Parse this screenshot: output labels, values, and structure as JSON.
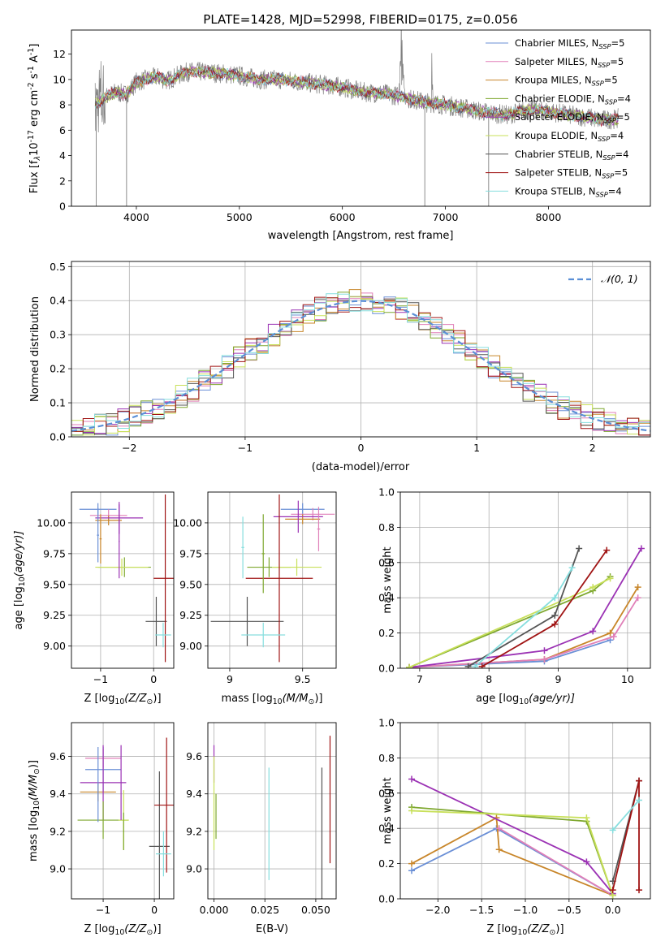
{
  "title": "PLATE=1428, MJD=52998, FIBERID=0175, z=0.056",
  "colors": {
    "Chabrier MILES": "#6a8fd6",
    "Salpeter MILES": "#e07fb8",
    "Kroupa MILES": "#c8862a",
    "Chabrier ELODIE": "#7fa830",
    "Salpeter ELODIE": "#9b32b4",
    "Kroupa ELODIE": "#c8e05a",
    "Chabrier STELIB": "#555555",
    "Salpeter STELIB": "#a01414",
    "Kroupa STELIB": "#86dede",
    "data": "#808080",
    "normal": "#5b8fd6",
    "MILES_pts": "#6a8fd6",
    "orange_pts": "#e07a28",
    "pink_pts": "#e07fb8"
  },
  "chart_data": [
    {
      "type": "line",
      "name": "spectrum",
      "xlabel": "wavelength [Angstrom, rest frame]",
      "ylabel": "Flux [f",
      "ylabel_rest": "10",
      "ylabel_exp1": "-17",
      "ylabel_mid": " erg cm",
      "ylabel_exp2": "-2",
      "ylabel_s": " s",
      "ylabel_exp3": "-1",
      "ylabel_end": " A",
      "ylabel_exp4": "-1",
      "ylabel_close": "]",
      "xlim": [
        3370,
        8990
      ],
      "ylim": [
        0,
        13.9
      ],
      "xticks": [
        4000,
        5000,
        6000,
        7000,
        8000
      ],
      "yticks": [
        0,
        2,
        4,
        6,
        8,
        10,
        12
      ],
      "legend": [
        {
          "name": "Chabrier MILES, N",
          "sub": "SSP",
          "suffix": "=5"
        },
        {
          "name": "Salpeter MILES, N",
          "sub": "SSP",
          "suffix": "=5"
        },
        {
          "name": "Kroupa MILES, N",
          "sub": "SSP",
          "suffix": "=5"
        },
        {
          "name": "Chabrier ELODIE, N",
          "sub": "SSP",
          "suffix": "=4"
        },
        {
          "name": "Salpeter ELODIE, N",
          "sub": "SSP",
          "suffix": "=5"
        },
        {
          "name": "Kroupa ELODIE, N",
          "sub": "SSP",
          "suffix": "=4"
        },
        {
          "name": "Chabrier STELIB, N",
          "sub": "SSP",
          "suffix": "=4"
        },
        {
          "name": "Salpeter STELIB, N",
          "sub": "SSP",
          "suffix": "=5"
        },
        {
          "name": "Kroupa STELIB, N",
          "sub": "SSP",
          "suffix": "=4"
        }
      ],
      "continuum": [
        [
          3600,
          8.0
        ],
        [
          3700,
          8.6
        ],
        [
          3800,
          9.0
        ],
        [
          3900,
          8.8
        ],
        [
          4000,
          9.8
        ],
        [
          4100,
          10.0
        ],
        [
          4200,
          10.2
        ],
        [
          4300,
          9.9
        ],
        [
          4400,
          10.3
        ],
        [
          4500,
          10.6
        ],
        [
          4600,
          10.6
        ],
        [
          4800,
          10.5
        ],
        [
          5000,
          10.3
        ],
        [
          5200,
          10.0
        ],
        [
          5400,
          10.0
        ],
        [
          5600,
          9.8
        ],
        [
          5800,
          9.6
        ],
        [
          6000,
          9.4
        ],
        [
          6200,
          9.0
        ],
        [
          6400,
          8.9
        ],
        [
          6600,
          8.6
        ],
        [
          6800,
          8.2
        ],
        [
          7000,
          8.0
        ],
        [
          7200,
          7.7
        ],
        [
          7400,
          7.4
        ],
        [
          7600,
          7.2
        ],
        [
          7800,
          7.6
        ],
        [
          8000,
          7.5
        ],
        [
          8200,
          7.2
        ],
        [
          8400,
          7.0
        ],
        [
          8500,
          6.8
        ],
        [
          8680,
          6.9
        ]
      ]
    },
    {
      "type": "line",
      "name": "residual_distribution",
      "xlabel": "(data-model)/error",
      "ylabel": "Normed distribution",
      "xlim": [
        -2.5,
        2.5
      ],
      "ylim": [
        0,
        0.515
      ],
      "xticks": [
        -2,
        -1,
        0,
        1,
        2
      ],
      "yticks": [
        0.0,
        0.1,
        0.2,
        0.3,
        0.4,
        0.5
      ],
      "legend": "N(0,1)",
      "bin_width": 0.1
    },
    {
      "type": "scatter",
      "name": "age_vs_Z",
      "xlabel": "Z [log",
      "xlabel_tail": "(Z/Z",
      "ylabel": "age  [log",
      "ylabel_tail": "(age/yr)]",
      "xlim": [
        -1.55,
        0.38
      ],
      "ylim": [
        8.82,
        10.25
      ],
      "xticks": [
        -1,
        0
      ],
      "yticks": [
        9.0,
        9.25,
        9.5,
        9.75,
        10.0
      ],
      "points": [
        {
          "model": "Chabrier MILES",
          "x": -1.05,
          "xerr": 0.35,
          "y": 10.11,
          "yerr": 0.05
        },
        {
          "model": "Salpeter MILES",
          "x": -0.85,
          "xerr": 0.35,
          "y": 10.06,
          "yerr": 0.05
        },
        {
          "model": "Kroupa MILES",
          "x": -0.85,
          "xerr": 0.25,
          "y": 10.02,
          "yerr": 0.04
        },
        {
          "model": "Salpeter ELODIE",
          "x": -0.65,
          "xerr": 0.45,
          "y": 10.04,
          "yerr": 0.13
        },
        {
          "model": "Chabrier ELODIE",
          "x": -0.55,
          "xerr": 0.5,
          "y": 9.64,
          "yerr": 0.08
        },
        {
          "model": "Kroupa ELODIE",
          "x": -0.6,
          "xerr": 0.5,
          "y": 9.64,
          "yerr": 0.07
        },
        {
          "model": "Chabrier STELIB",
          "x": 0.05,
          "xerr": 0.2,
          "y": 9.2,
          "yerr": 0.2
        },
        {
          "model": "Salpeter STELIB",
          "x": 0.22,
          "xerr": 0.22,
          "y": 9.55,
          "yerr": 0.68
        },
        {
          "model": "Kroupa STELIB",
          "x": 0.18,
          "xerr": 0.15,
          "y": 9.09,
          "yerr": 0.1
        },
        {
          "model": "Chabrier MILES",
          "x": -1.05,
          "xerr": 0.02,
          "y": 9.9,
          "yerr": 0.22
        },
        {
          "model": "Kroupa MILES",
          "x": -1.0,
          "xerr": 0.02,
          "y": 9.87,
          "yerr": 0.2
        },
        {
          "model": "Salpeter ELODIE",
          "x": -0.65,
          "xerr": 0.01,
          "y": 9.85,
          "yerr": 0.3
        }
      ]
    },
    {
      "type": "scatter",
      "name": "age_vs_mass",
      "xlabel": "mass [log",
      "xlabel_tail": "(M/M",
      "xlim": [
        8.85,
        9.73
      ],
      "ylim": [
        8.82,
        10.25
      ],
      "xticks": [
        9.0,
        9.5
      ],
      "yticks": [
        9.0,
        9.25,
        9.5,
        9.75,
        10.0
      ],
      "points": [
        {
          "model": "Chabrier MILES",
          "x": 9.5,
          "xerr": 0.15,
          "y": 10.11,
          "yerr": 0.05
        },
        {
          "model": "Salpeter MILES",
          "x": 9.57,
          "xerr": 0.15,
          "y": 10.07,
          "yerr": 0.05
        },
        {
          "model": "Kroupa MILES",
          "x": 9.5,
          "xerr": 0.12,
          "y": 10.03,
          "yerr": 0.04
        },
        {
          "model": "Salpeter ELODIE",
          "x": 9.47,
          "xerr": 0.17,
          "y": 10.05,
          "yerr": 0.13
        },
        {
          "model": "Chabrier ELODIE",
          "x": 9.27,
          "xerr": 0.15,
          "y": 9.64,
          "yerr": 0.08
        },
        {
          "model": "Kroupa ELODIE",
          "x": 9.46,
          "xerr": 0.17,
          "y": 9.64,
          "yerr": 0.07
        },
        {
          "model": "Chabrier STELIB",
          "x": 9.12,
          "xerr": 0.25,
          "y": 9.2,
          "yerr": 0.2
        },
        {
          "model": "Salpeter STELIB",
          "x": 9.34,
          "xerr": 0.23,
          "y": 9.55,
          "yerr": 0.68
        },
        {
          "model": "Kroupa STELIB",
          "x": 9.23,
          "xerr": 0.15,
          "y": 9.09,
          "yerr": 0.1
        },
        {
          "model": "Chabrier ELODIE",
          "x": 9.23,
          "xerr": 0.01,
          "y": 9.75,
          "yerr": 0.32
        },
        {
          "model": "Kroupa STELIB",
          "x": 9.09,
          "xerr": 0.01,
          "y": 9.8,
          "yerr": 0.25
        },
        {
          "model": "Salpeter MILES",
          "x": 9.61,
          "xerr": 0.01,
          "y": 9.95,
          "yerr": 0.18
        }
      ]
    },
    {
      "type": "line",
      "name": "mass_weight_vs_age",
      "xlabel": "age  [log",
      "xlabel_tail": "(age/yr)]",
      "ylabel": "mass weight",
      "xlim": [
        6.72,
        10.33
      ],
      "ylim": [
        0,
        1.0
      ],
      "xticks": [
        7,
        8,
        9,
        10
      ],
      "yticks": [
        0.0,
        0.2,
        0.4,
        0.6,
        0.8,
        1.0
      ],
      "series": [
        {
          "model": "Chabrier MILES",
          "x": [
            6.85,
            8.8,
            9.75
          ],
          "y": [
            0.005,
            0.04,
            0.16
          ]
        },
        {
          "model": "Kroupa MILES",
          "x": [
            6.85,
            8.8,
            9.75,
            10.15
          ],
          "y": [
            0.005,
            0.05,
            0.2,
            0.46
          ]
        },
        {
          "model": "Salpeter MILES",
          "x": [
            6.85,
            8.8,
            9.8,
            10.15
          ],
          "y": [
            0.005,
            0.05,
            0.18,
            0.4
          ]
        },
        {
          "model": "Salpeter ELODIE",
          "x": [
            6.85,
            8.8,
            9.5,
            10.2
          ],
          "y": [
            0.005,
            0.1,
            0.21,
            0.68
          ]
        },
        {
          "model": "Chabrier ELODIE",
          "x": [
            6.85,
            9.5,
            9.75
          ],
          "y": [
            0.005,
            0.44,
            0.52
          ]
        },
        {
          "model": "Kroupa ELODIE",
          "x": [
            6.85,
            9.5,
            9.75
          ],
          "y": [
            0.005,
            0.46,
            0.51
          ]
        },
        {
          "model": "Chabrier STELIB",
          "x": [
            7.7,
            8.95,
            9.3
          ],
          "y": [
            0.01,
            0.3,
            0.68
          ]
        },
        {
          "model": "Salpeter STELIB",
          "x": [
            7.9,
            8.95,
            9.7
          ],
          "y": [
            0.01,
            0.25,
            0.67
          ]
        },
        {
          "model": "Kroupa STELIB",
          "x": [
            7.8,
            8.95,
            9.2
          ],
          "y": [
            0.01,
            0.4,
            0.57
          ]
        }
      ]
    },
    {
      "type": "scatter",
      "name": "mass_vs_Z",
      "xlabel": "Z [log",
      "xlabel_tail": "(Z/Z",
      "ylabel": "mass [log",
      "ylabel_tail": "(M/M",
      "xlim": [
        -1.62,
        0.38
      ],
      "ylim": [
        8.84,
        9.78
      ],
      "xticks": [
        -1,
        0
      ],
      "yticks": [
        9.0,
        9.2,
        9.4,
        9.6
      ],
      "points": [
        {
          "model": "Chabrier MILES",
          "x": -1.0,
          "xerr": 0.35,
          "y": 9.53,
          "yerr": 0.12
        },
        {
          "model": "Salpeter MILES",
          "x": -1.0,
          "xerr": 0.35,
          "y": 9.59,
          "yerr": 0.05
        },
        {
          "model": "Kroupa MILES",
          "x": -1.1,
          "xerr": 0.35,
          "y": 9.41,
          "yerr": 0.05
        },
        {
          "model": "Salpeter ELODIE",
          "x": -1.0,
          "xerr": 0.45,
          "y": 9.46,
          "yerr": 0.2
        },
        {
          "model": "Chabrier ELODIE",
          "x": -1.0,
          "xerr": 0.5,
          "y": 9.26,
          "yerr": 0.1
        },
        {
          "model": "Kroupa ELODIE",
          "x": -0.6,
          "xerr": 0.1,
          "y": 9.26,
          "yerr": 0.16
        },
        {
          "model": "Chabrier STELIB",
          "x": 0.1,
          "xerr": 0.2,
          "y": 9.12,
          "yerr": 0.4
        },
        {
          "model": "Salpeter STELIB",
          "x": 0.24,
          "xerr": 0.24,
          "y": 9.34,
          "yerr": 0.36
        },
        {
          "model": "Kroupa STELIB",
          "x": 0.18,
          "xerr": 0.15,
          "y": 9.08,
          "yerr": 0.12
        },
        {
          "model": "Chabrier MILES",
          "x": -1.1,
          "xerr": 0.01,
          "y": 9.45,
          "yerr": 0.2
        },
        {
          "model": "Salpeter ELODIE",
          "x": -0.65,
          "xerr": 0.01,
          "y": 9.46,
          "yerr": 0.2
        },
        {
          "model": "Chabrier ELODIE",
          "x": -0.6,
          "xerr": 0.01,
          "y": 9.2,
          "yerr": 0.1
        }
      ]
    },
    {
      "type": "scatter",
      "name": "mass_vs_EBV",
      "xlabel": "E(B-V)",
      "xlim": [
        -0.003,
        0.06
      ],
      "ylim": [
        8.84,
        9.78
      ],
      "xticks": [
        0.0,
        0.025,
        0.05
      ],
      "xticklabels": [
        "0.000",
        "0.025",
        "0.050"
      ],
      "yticks": [
        9.0,
        9.2,
        9.4,
        9.6
      ],
      "points": [
        {
          "model": "Salpeter ELODIE",
          "x": 0.0,
          "y": 9.56,
          "yerr": 0.1
        },
        {
          "model": "Kroupa ELODIE",
          "x": 0.0,
          "y": 9.35,
          "yerr": 0.25
        },
        {
          "model": "Chabrier ELODIE",
          "x": 0.001,
          "y": 9.28,
          "yerr": 0.12
        },
        {
          "model": "Kroupa STELIB",
          "x": 0.027,
          "y": 9.24,
          "yerr": 0.3
        },
        {
          "model": "Chabrier STELIB",
          "x": 0.053,
          "y": 9.12,
          "yerr": 0.42
        },
        {
          "model": "Salpeter STELIB",
          "x": 0.057,
          "y": 9.37,
          "yerr": 0.34
        }
      ]
    },
    {
      "type": "line",
      "name": "mass_weight_vs_Z",
      "xlabel": "Z [log",
      "xlabel_tail": "(Z/Z",
      "ylabel": "mass weight",
      "xlim": [
        -2.43,
        0.43
      ],
      "ylim": [
        0,
        1.0
      ],
      "xticks": [
        -2.0,
        -1.5,
        -1.0,
        -0.5,
        0.0
      ],
      "xticklabels": [
        "−2.0",
        "−1.5",
        "−1.0",
        "−0.5",
        "0.0"
      ],
      "yticks": [
        0.0,
        0.2,
        0.4,
        0.6,
        0.8,
        1.0
      ],
      "series": [
        {
          "model": "Chabrier MILES",
          "x": [
            -2.3,
            -1.33,
            0.0
          ],
          "y": [
            0.16,
            0.4,
            0.02
          ]
        },
        {
          "model": "Kroupa MILES",
          "x": [
            -2.3,
            -1.33,
            -1.3,
            0.0
          ],
          "y": [
            0.2,
            0.46,
            0.28,
            0.02
          ]
        },
        {
          "model": "Salpeter MILES",
          "x": [
            -1.3,
            0.0
          ],
          "y": [
            0.4,
            0.02
          ]
        },
        {
          "model": "Salpeter ELODIE",
          "x": [
            -2.3,
            -0.3,
            0.0
          ],
          "y": [
            0.68,
            0.21,
            0.03
          ]
        },
        {
          "model": "Chabrier ELODIE",
          "x": [
            -2.3,
            -0.3,
            0.0
          ],
          "y": [
            0.52,
            0.44,
            0.02
          ]
        },
        {
          "model": "Kroupa ELODIE",
          "x": [
            -2.3,
            -0.3,
            0.0
          ],
          "y": [
            0.5,
            0.46,
            0.02
          ]
        },
        {
          "model": "Chabrier STELIB",
          "x": [
            0.0,
            0.3
          ],
          "y": [
            0.1,
            0.67
          ]
        },
        {
          "model": "Salpeter STELIB",
          "x": [
            0.0,
            0.3,
            0.3
          ],
          "y": [
            0.05,
            0.67,
            0.05
          ]
        },
        {
          "model": "Kroupa STELIB",
          "x": [
            0.0,
            0.3
          ],
          "y": [
            0.39,
            0.56
          ]
        }
      ]
    }
  ]
}
